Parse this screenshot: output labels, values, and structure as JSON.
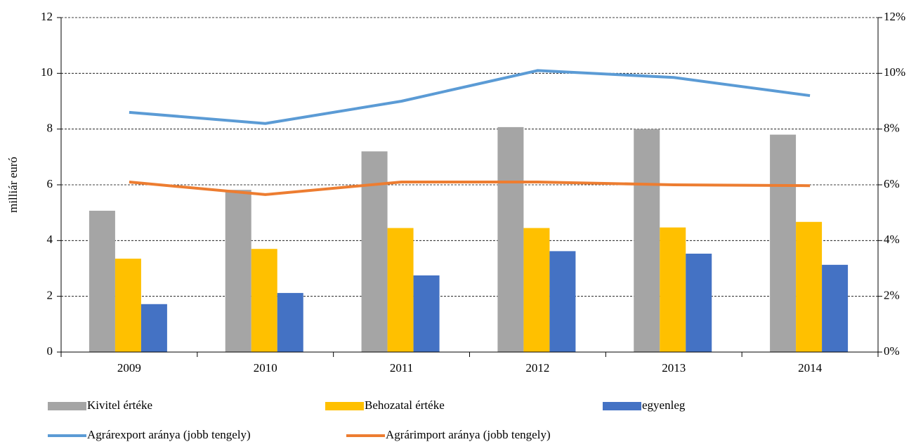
{
  "chart_data": {
    "type": "bar_line",
    "ylabel": "milliár euró",
    "categories": [
      "2009",
      "2010",
      "2011",
      "2012",
      "2013",
      "2014"
    ],
    "series": [
      {
        "name": "Kivitel értéke",
        "type": "bar",
        "color": "#a5a5a5",
        "values": [
          5.07,
          5.82,
          7.2,
          8.07,
          8.0,
          7.8
        ]
      },
      {
        "name": "Behozatal értéke",
        "type": "bar",
        "color": "#ffc000",
        "values": [
          3.35,
          3.7,
          4.45,
          4.45,
          4.47,
          4.67
        ]
      },
      {
        "name": "egyenleg",
        "type": "bar",
        "color": "#4472c4",
        "values": [
          1.72,
          2.12,
          2.75,
          3.62,
          3.53,
          3.13
        ]
      },
      {
        "name": "Agrárexport aránya (jobb tengely)",
        "type": "line",
        "axis": "y2",
        "color": "#5b9bd5",
        "values": [
          8.6,
          8.2,
          9.0,
          10.1,
          9.85,
          9.2
        ]
      },
      {
        "name": "Agrárimport aránya (jobb tengely)",
        "type": "line",
        "axis": "y2",
        "color": "#ed7d31",
        "values": [
          6.1,
          5.65,
          6.1,
          6.1,
          6.0,
          5.97
        ]
      }
    ],
    "ylim": [
      0,
      12
    ],
    "yticks": [
      0,
      2,
      4,
      6,
      8,
      10,
      12
    ],
    "y2lim": [
      0,
      12
    ],
    "y2ticks": [
      {
        "value": 0,
        "label": "0%"
      },
      {
        "value": 2,
        "label": "2%"
      },
      {
        "value": 4,
        "label": "4%"
      },
      {
        "value": 6,
        "label": "6%"
      },
      {
        "value": 8,
        "label": "8%"
      },
      {
        "value": 10,
        "label": "10%"
      },
      {
        "value": 12,
        "label": "12%"
      }
    ],
    "grid": true,
    "legend": "bottom"
  }
}
